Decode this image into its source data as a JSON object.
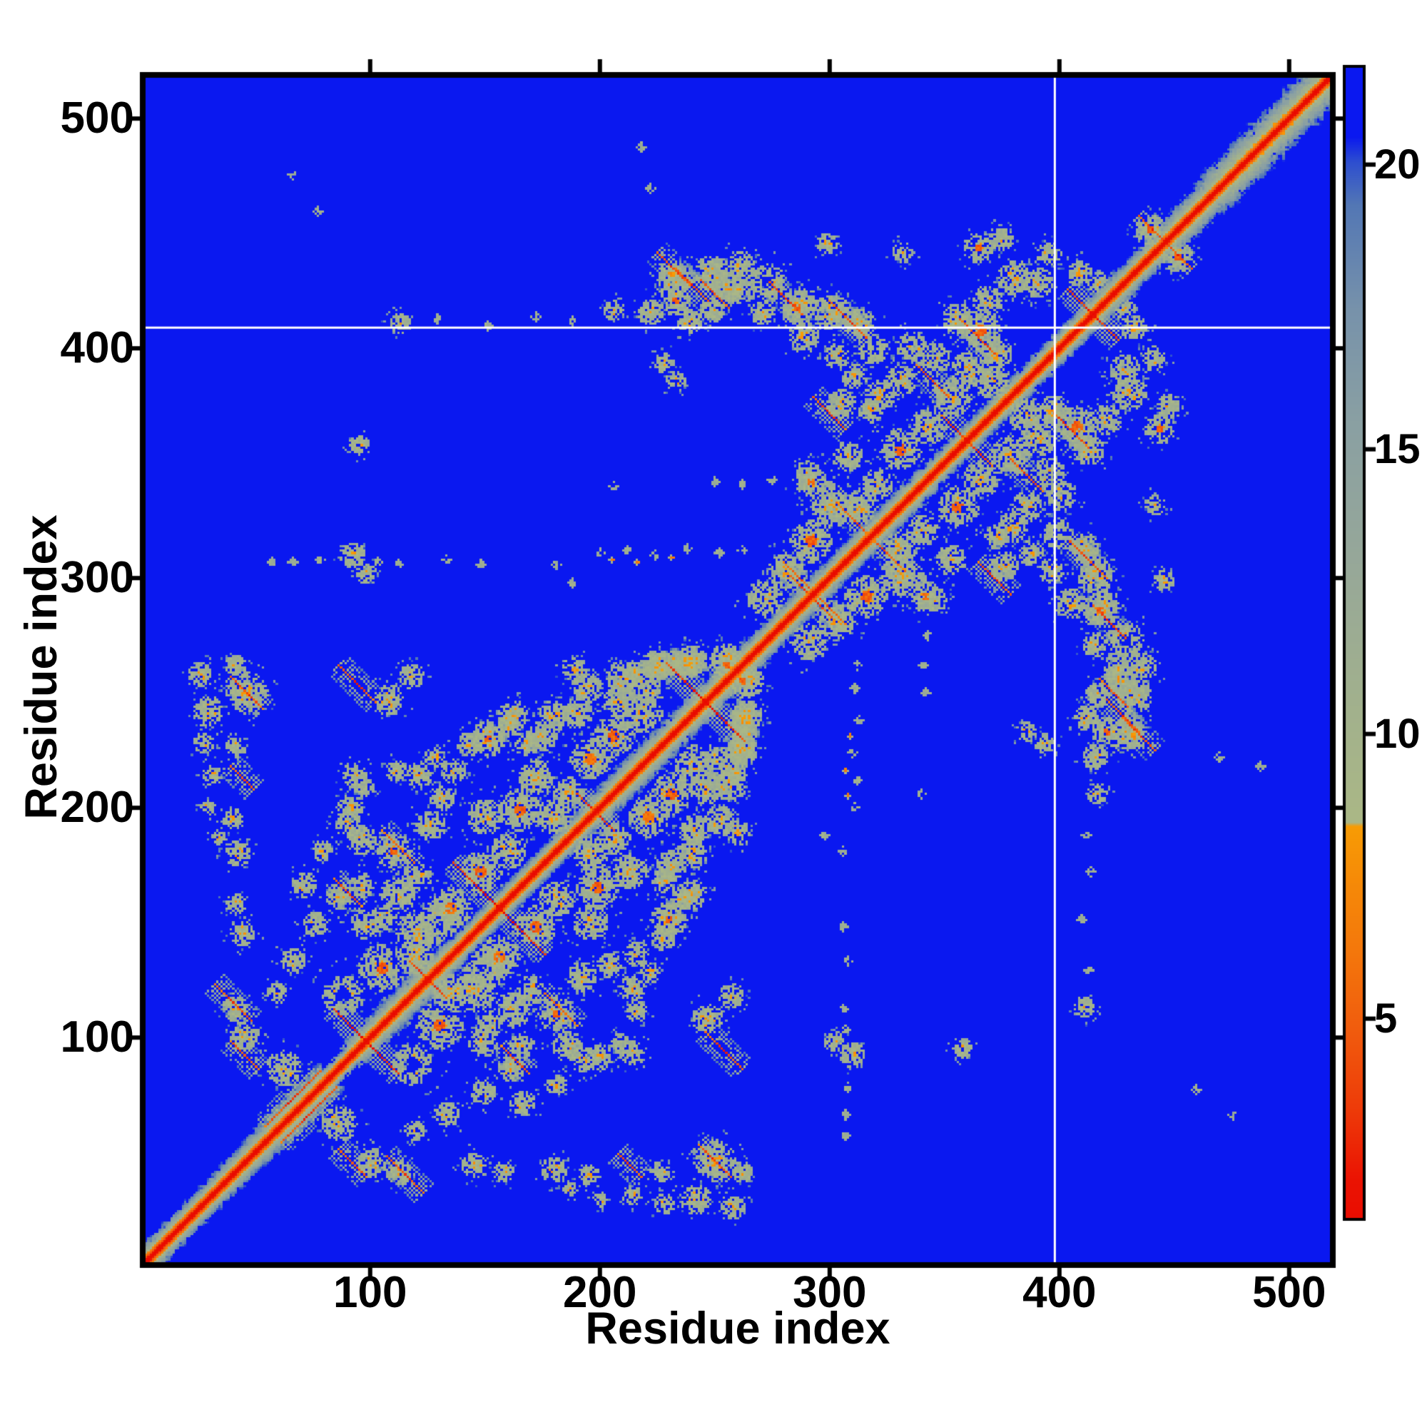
{
  "figure": {
    "xlabel": "Residue index",
    "ylabel": "Residue index",
    "x_ticks": [
      100,
      200,
      300,
      400,
      500
    ],
    "y_ticks": [
      100,
      200,
      300,
      400,
      500
    ],
    "colorbar_ticks": [
      20,
      15,
      10,
      5
    ]
  },
  "chart_data": {
    "type": "heatmap",
    "title": "",
    "xlabel": "Residue index",
    "ylabel": "Residue index",
    "axis_range": [
      1,
      519
    ],
    "n_residues": 519,
    "grid": false,
    "legend": "colorbar-right",
    "colorbar": {
      "ticks": [
        20,
        15,
        10,
        5
      ],
      "vmin": 1.5,
      "vmax": 21.7
    },
    "background_value": 25,
    "colormap_stops": [
      [
        1.0,
        "#e90800"
      ],
      [
        2.2,
        "#eb1403"
      ],
      [
        3.4,
        "#ee3b09"
      ],
      [
        4.8,
        "#f15c0e"
      ],
      [
        6.2,
        "#f4780c"
      ],
      [
        7.4,
        "#f68a08"
      ],
      [
        8.38,
        "#f89c05"
      ],
      [
        8.45,
        "#abb886"
      ],
      [
        10.5,
        "#a2b18d"
      ],
      [
        13.0,
        "#97a899"
      ],
      [
        15.5,
        "#8aa0a3"
      ],
      [
        17.5,
        "#7792ab"
      ],
      [
        19.3,
        "#5377b5"
      ],
      [
        20.05,
        "#2e4fd0"
      ],
      [
        20.5,
        "#0a18f0"
      ],
      [
        26.0,
        "#0a18f0"
      ]
    ],
    "missing_lines": {
      "row": 409,
      "col": 398,
      "color": "#ffffff"
    },
    "diagonal_segments": [
      [
        1,
        55,
        9
      ],
      [
        55,
        78,
        11
      ],
      [
        78,
        95,
        7
      ],
      [
        95,
        132,
        10
      ],
      [
        132,
        203,
        8
      ],
      [
        203,
        268,
        10
      ],
      [
        268,
        340,
        9
      ],
      [
        340,
        396,
        8
      ],
      [
        396,
        450,
        9
      ],
      [
        450,
        472,
        11
      ],
      [
        472,
        519,
        14
      ]
    ],
    "streaks": [
      [
        98,
        98,
        14,
        1.2
      ],
      [
        156,
        156,
        20,
        1.5
      ],
      [
        125,
        125,
        8,
        2
      ],
      [
        198,
        198,
        8,
        2
      ],
      [
        246,
        246,
        17,
        1.2
      ],
      [
        360,
        360,
        11,
        2
      ],
      [
        415,
        415,
        11,
        1.5
      ],
      [
        40,
        115,
        8,
        2.5
      ],
      [
        94,
        254,
        8,
        2.5
      ],
      [
        163,
        90,
        6,
        3
      ],
      [
        183,
        112,
        7,
        3
      ],
      [
        92,
        45,
        6,
        3
      ],
      [
        213,
        44,
        5,
        3
      ],
      [
        250,
        46,
        7,
        2.5
      ],
      [
        232,
        435,
        7,
        2.5
      ],
      [
        250,
        424,
        6,
        3
      ],
      [
        308,
        413,
        8,
        2.5
      ],
      [
        345,
        386,
        7,
        2.5
      ],
      [
        300,
        287,
        7,
        3
      ],
      [
        310,
        326,
        7,
        3
      ],
      [
        288,
        296,
        6,
        3
      ],
      [
        372,
        300,
        7,
        2.5
      ],
      [
        422,
        281,
        7,
        2.5
      ],
      [
        428,
        240,
        7,
        2.5
      ],
      [
        405,
        365,
        8,
        2
      ],
      [
        452,
        441,
        6,
        2.5
      ],
      [
        66,
        73,
        12,
        2.5,
        1
      ]
    ],
    "blobs": [
      [
        62,
        86,
        7
      ],
      [
        88,
        118,
        8,
        null,
        1
      ],
      [
        105,
        130,
        9,
        5
      ],
      [
        120,
        146,
        8
      ],
      [
        98,
        149,
        6
      ],
      [
        112,
        162,
        7
      ],
      [
        135,
        156,
        8,
        6
      ],
      [
        148,
        172,
        8,
        5
      ],
      [
        160,
        181,
        7
      ],
      [
        150,
        196,
        7
      ],
      [
        165,
        199,
        8,
        5
      ],
      [
        180,
        196,
        7
      ],
      [
        172,
        213,
        7
      ],
      [
        186,
        207,
        6
      ],
      [
        196,
        221,
        8,
        6
      ],
      [
        206,
        231,
        8,
        5
      ],
      [
        218,
        241,
        8
      ],
      [
        210,
        256,
        7
      ],
      [
        190,
        241,
        6
      ],
      [
        175,
        231,
        6
      ],
      [
        160,
        236,
        5
      ],
      [
        143,
        228,
        5
      ],
      [
        128,
        222,
        4
      ],
      [
        111,
        216,
        4
      ],
      [
        97,
        209,
        4
      ],
      [
        90,
        193,
        5
      ],
      [
        79,
        181,
        4
      ],
      [
        71,
        166,
        5
      ],
      [
        86,
        161,
        5
      ],
      [
        76,
        149,
        5
      ],
      [
        66,
        133,
        5
      ],
      [
        59,
        119,
        4
      ],
      [
        135,
        120,
        7
      ],
      [
        150,
        129,
        8,
        null,
        1
      ],
      [
        170,
        120,
        6
      ],
      [
        181,
        110,
        7,
        5
      ],
      [
        192,
        126,
        6
      ],
      [
        204,
        131,
        5
      ],
      [
        214,
        121,
        5
      ],
      [
        216,
        136,
        5
      ],
      [
        152,
        106,
        5
      ],
      [
        166,
        96,
        5
      ],
      [
        186,
        96,
        6
      ],
      [
        200,
        91,
        5
      ],
      [
        214,
        93,
        5
      ],
      [
        230,
        151,
        7,
        5
      ],
      [
        240,
        162,
        6
      ],
      [
        228,
        168,
        5
      ],
      [
        240,
        180,
        6
      ],
      [
        252,
        194,
        6
      ],
      [
        246,
        208,
        6
      ],
      [
        258,
        216,
        6
      ],
      [
        250,
        222,
        5
      ],
      [
        225,
        262,
        6
      ],
      [
        240,
        264,
        6
      ],
      [
        255,
        262,
        7,
        5
      ],
      [
        262,
        225,
        6
      ],
      [
        263,
        240,
        5
      ],
      [
        265,
        255,
        6
      ],
      [
        236,
        262,
        6
      ],
      [
        263,
        233,
        5
      ],
      [
        108,
        247,
        6
      ],
      [
        118,
        257,
        5
      ],
      [
        26,
        258,
        5
      ],
      [
        29,
        242,
        6
      ],
      [
        27,
        228,
        4
      ],
      [
        31,
        214,
        4
      ],
      [
        29,
        200,
        3
      ],
      [
        34,
        187,
        3
      ],
      [
        100,
        45,
        6
      ],
      [
        112,
        41,
        5
      ],
      [
        145,
        44,
        5
      ],
      [
        158,
        41,
        4
      ],
      [
        180,
        42,
        5
      ],
      [
        195,
        40,
        4
      ],
      [
        226,
        41,
        4
      ],
      [
        262,
        41,
        4
      ],
      [
        250,
        46,
        8
      ],
      [
        260,
        189,
        5
      ],
      [
        310,
        92,
        5
      ],
      [
        302,
        98,
        4
      ],
      [
        358,
        95,
        4
      ],
      [
        272,
        291,
        7
      ],
      [
        281,
        303,
        7
      ],
      [
        292,
        316,
        8,
        5
      ],
      [
        301,
        331,
        8
      ],
      [
        313,
        331,
        7
      ],
      [
        321,
        341,
        6
      ],
      [
        308,
        353,
        6
      ],
      [
        291,
        346,
        5
      ],
      [
        331,
        356,
        8,
        5
      ],
      [
        343,
        366,
        7
      ],
      [
        353,
        379,
        8
      ],
      [
        361,
        391,
        7
      ],
      [
        371,
        386,
        7
      ],
      [
        346,
        396,
        6
      ],
      [
        331,
        386,
        6
      ],
      [
        318,
        373,
        5
      ],
      [
        356,
        413,
        6
      ],
      [
        369,
        421,
        6
      ],
      [
        381,
        431,
        7
      ],
      [
        391,
        429,
        6
      ],
      [
        301,
        416,
        7
      ],
      [
        313,
        411,
        6
      ],
      [
        289,
        421,
        5
      ],
      [
        271,
        416,
        5
      ],
      [
        232,
        429,
        7
      ],
      [
        249,
        433,
        7
      ],
      [
        261,
        426,
        6
      ],
      [
        222,
        416,
        5
      ],
      [
        239,
        412,
        5
      ],
      [
        336,
        401,
        6
      ],
      [
        396,
        441,
        5
      ],
      [
        409,
        433,
        5
      ],
      [
        417,
        429,
        4
      ],
      [
        452,
        440,
        6,
        5
      ],
      [
        365,
        444,
        6,
        5
      ],
      [
        375,
        448,
        5
      ],
      [
        332,
        442,
        4
      ],
      [
        299,
        446,
        4
      ],
      [
        228,
        394,
        4
      ],
      [
        233,
        386,
        4
      ],
      [
        408,
        366,
        8,
        5
      ],
      [
        398,
        373,
        6
      ],
      [
        400,
        319,
        6
      ],
      [
        397,
        303,
        5
      ],
      [
        405,
        289,
        6
      ],
      [
        418,
        286,
        7,
        5
      ],
      [
        429,
        273,
        7,
        null,
        1
      ],
      [
        436,
        261,
        6
      ],
      [
        426,
        256,
        6
      ],
      [
        417,
        249,
        5
      ],
      [
        421,
        233,
        6,
        5
      ],
      [
        433,
        231,
        5
      ],
      [
        417,
        206,
        4
      ],
      [
        342,
        292,
        6,
        6
      ],
      [
        380,
        322,
        6
      ],
      [
        376,
        305,
        6
      ],
      [
        388,
        311,
        5
      ],
      [
        411,
        113,
        4
      ]
    ],
    "dots": [
      [
        57,
        307
      ],
      [
        66,
        307
      ],
      [
        78,
        308
      ],
      [
        90,
        307
      ],
      [
        103,
        307
      ],
      [
        112,
        306
      ],
      [
        133,
        308
      ],
      [
        148,
        306
      ],
      [
        311,
        200
      ],
      [
        312,
        212
      ],
      [
        310,
        224
      ],
      [
        313,
        238
      ],
      [
        311,
        252
      ],
      [
        312,
        262
      ],
      [
        250,
        342
      ],
      [
        262,
        341
      ],
      [
        275,
        343
      ],
      [
        290,
        342
      ],
      [
        300,
        341
      ],
      [
        298,
        188
      ],
      [
        306,
        181
      ],
      [
        340,
        206
      ],
      [
        412,
        188
      ],
      [
        414,
        172
      ],
      [
        410,
        151
      ],
      [
        413,
        129
      ],
      [
        470,
        222
      ],
      [
        488,
        218
      ],
      [
        476,
        66
      ],
      [
        460,
        77
      ]
    ],
    "orange_dots": [
      [
        205,
        308
      ],
      [
        216,
        307
      ],
      [
        231,
        309
      ]
    ],
    "noise_seed": 12345
  }
}
